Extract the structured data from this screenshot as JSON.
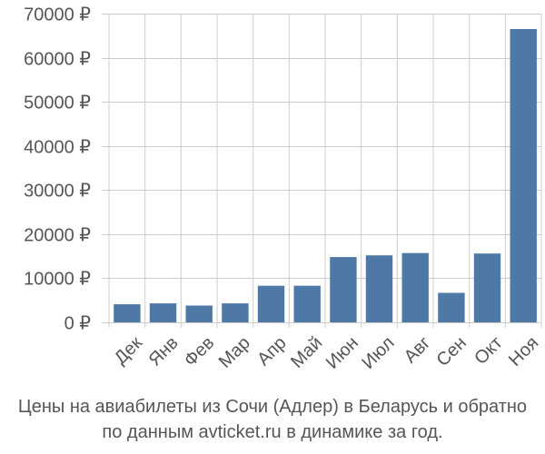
{
  "chart_data": {
    "type": "bar",
    "categories": [
      "Дек",
      "Янв",
      "Фев",
      "Мар",
      "Апр",
      "Май",
      "Июн",
      "Июл",
      "Авг",
      "Сен",
      "Окт",
      "Ноя"
    ],
    "values": [
      4100,
      4300,
      3800,
      4300,
      8300,
      8300,
      14800,
      15200,
      15700,
      6700,
      15600,
      66500
    ],
    "ylim": [
      0,
      70000
    ],
    "yticks": [
      0,
      10000,
      20000,
      30000,
      40000,
      50000,
      60000,
      70000
    ],
    "ytick_labels": [
      "0 ₽",
      "10000 ₽",
      "20000 ₽",
      "30000 ₽",
      "40000 ₽",
      "50000 ₽",
      "60000 ₽",
      "70000 ₽"
    ],
    "grid": true,
    "bar_color": "#4e79a7",
    "grid_color": "#cccccc"
  },
  "caption": {
    "line1": "Цены на авиабилеты из Сочи (Адлер) в Беларусь и обратно",
    "line2": "по данным avticket.ru в динамике за год."
  }
}
